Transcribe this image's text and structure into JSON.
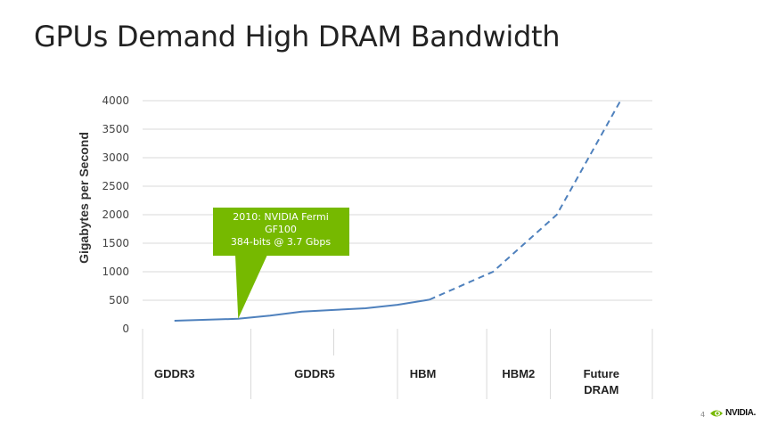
{
  "slide": {
    "title": "GPUs Demand High DRAM Bandwidth",
    "page_number": "4",
    "logo_text": "NVIDIA."
  },
  "callout": {
    "lines": [
      "2010: NVIDIA Fermi",
      "GF100",
      "384-bits @ 3.7 Gbps"
    ]
  },
  "colors": {
    "line": "#4f81bd",
    "callout": "#76b900",
    "grid": "#d9d9d9",
    "logo_green": "#76b900"
  },
  "chart_data": {
    "type": "line",
    "ylabel": "Gigabytes per Second",
    "xlabel": "",
    "ylim": [
      0,
      4000
    ],
    "yticks": [
      0,
      500,
      1000,
      1500,
      2000,
      2500,
      3000,
      3500,
      4000
    ],
    "ytick_labels": [
      "0",
      "500",
      "1000",
      "1500",
      "2000",
      "2500",
      "3000",
      "3500",
      "4000"
    ],
    "categories": [
      {
        "lines": [
          "GDDR3"
        ]
      },
      {
        "lines": [
          "GDDR5"
        ]
      },
      {
        "lines": [
          "HBM"
        ]
      },
      {
        "lines": [
          "HBM2"
        ]
      },
      {
        "lines": [
          "Future",
          "DRAM"
        ]
      }
    ],
    "grid": true,
    "series": [
      {
        "style": "solid",
        "points": [
          [
            0.5,
            140
          ],
          [
            1.5,
            175
          ],
          [
            2.0,
            230
          ],
          [
            2.5,
            300
          ],
          [
            3.0,
            330
          ],
          [
            3.5,
            360
          ],
          [
            4.0,
            420
          ],
          [
            4.5,
            510
          ]
        ]
      },
      {
        "style": "dashed",
        "points": [
          [
            4.5,
            510
          ],
          [
            5.5,
            1000
          ],
          [
            6.5,
            2000
          ],
          [
            7.5,
            4000
          ]
        ]
      }
    ],
    "annotation_point": [
      1.5,
      175
    ]
  }
}
